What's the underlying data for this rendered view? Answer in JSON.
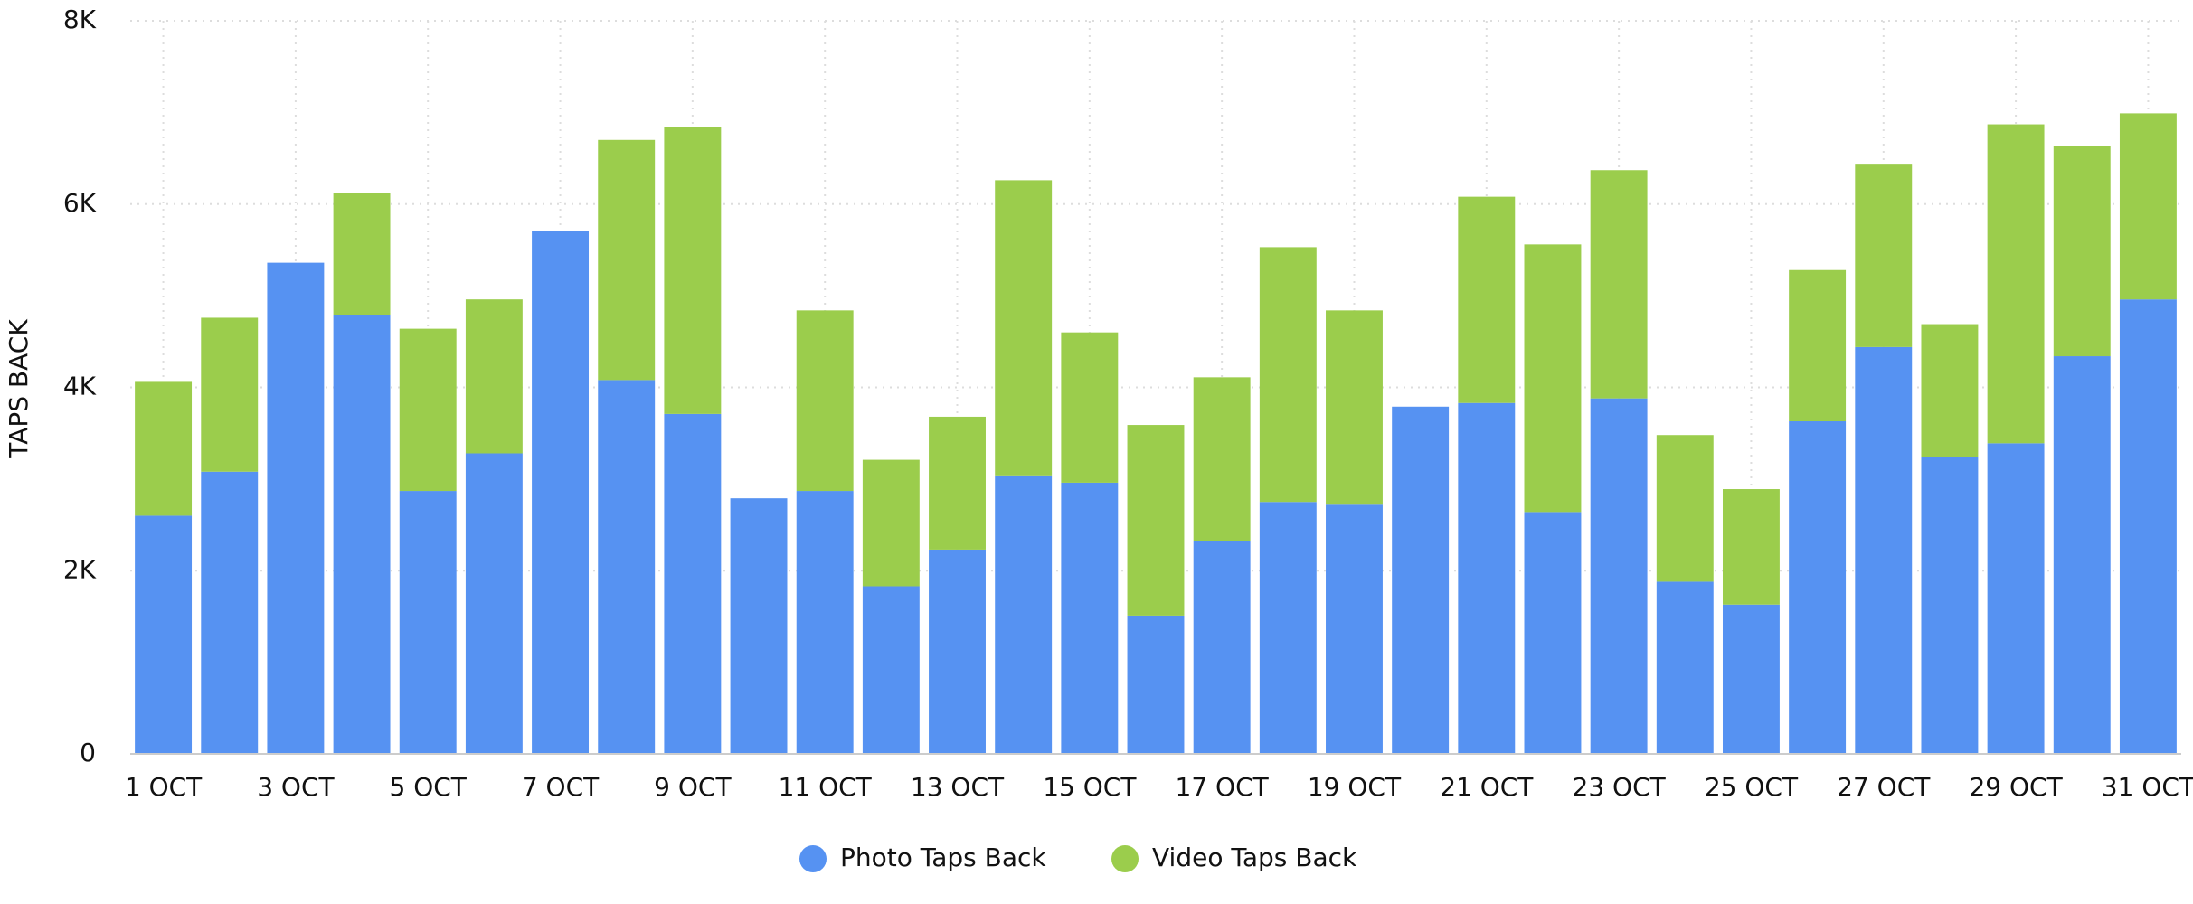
{
  "chart_data": {
    "type": "stacked-bar",
    "y_label": "TAPS BACK",
    "categories": [
      "1 OCT",
      null,
      "3 OCT",
      null,
      "5 OCT",
      null,
      "7 OCT",
      null,
      "9 OCT",
      null,
      "11 OCT",
      null,
      "13 OCT",
      null,
      "15 OCT",
      null,
      "17 OCT",
      null,
      "19 OCT",
      null,
      "21 OCT",
      null,
      "23 OCT",
      null,
      "25 OCT",
      null,
      "27 OCT",
      null,
      "29 OCT",
      null,
      "31 OCT"
    ],
    "series": [
      {
        "name": "Photo Taps Back",
        "color": "#5692f2",
        "values": [
          2600,
          3080,
          5360,
          4790,
          2870,
          3280,
          5710,
          4080,
          3710,
          2790,
          2870,
          1830,
          2230,
          3040,
          2960,
          1510,
          2320,
          2750,
          2720,
          3790,
          3830,
          2640,
          3880,
          1880,
          1630,
          3630,
          4440,
          3240,
          3390,
          4340,
          4960
        ]
      },
      {
        "name": "Video Taps Back",
        "color": "#9bcd4c",
        "values": [
          1460,
          1680,
          0,
          1330,
          1770,
          1680,
          0,
          2620,
          3130,
          0,
          1970,
          1380,
          1450,
          3220,
          1640,
          2080,
          1790,
          2780,
          2120,
          0,
          2250,
          2920,
          2490,
          1600,
          1260,
          1650,
          2000,
          1450,
          3480,
          2290,
          2030
        ]
      }
    ],
    "ylim": [
      0,
      8000
    ],
    "yticks": [
      0,
      {
        "value": 2000,
        "label": "2K"
      },
      {
        "value": 4000,
        "label": "4K"
      },
      {
        "value": 6000,
        "label": "6K"
      },
      {
        "value": 8000,
        "label": "8K"
      }
    ],
    "grid": true,
    "legend": "bottom"
  }
}
